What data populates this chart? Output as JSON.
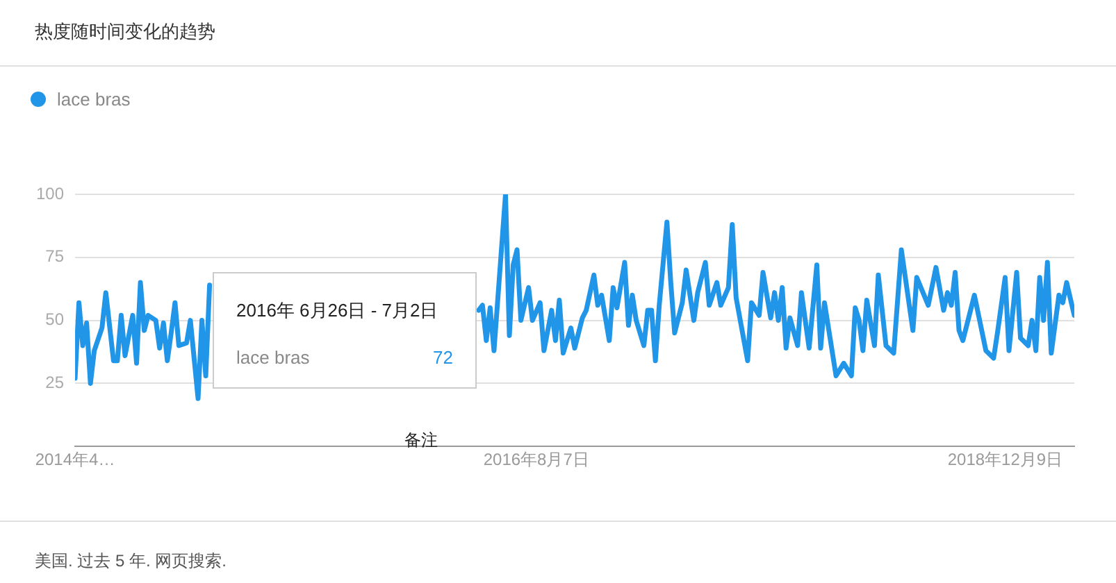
{
  "chart_data": {
    "type": "line",
    "title": "热度随时间变化的趋势",
    "legend": "top left",
    "grid": "y",
    "marker": "none",
    "line_style": "solid",
    "xlim": [
      "2014-04-20",
      "2019-04-14"
    ],
    "xticks": [
      {
        "value": "2014-04-20",
        "label": "2014年4…"
      },
      {
        "value": "2016-08-07",
        "label": "2016年8月7日"
      },
      {
        "value": "2018-12-09",
        "label": "2018年12月9日"
      }
    ],
    "ylim": [
      0,
      100
    ],
    "yticks": [
      25,
      50,
      75,
      100
    ],
    "annotations": [
      "2016年 6月26日 - 7月2日",
      "72",
      "备注",
      "美国. 过去 5 年. 网页搜索."
    ],
    "series": [
      {
        "name": "lace bras",
        "color": "#2196e8",
        "x": [
          "2014-04-20",
          "2014-04-27",
          "2014-05-04",
          "2014-05-11",
          "2014-05-18",
          "2014-05-25",
          "2014-06-08",
          "2014-06-15",
          "2014-06-29",
          "2014-07-06",
          "2014-07-13",
          "2014-07-20",
          "2014-08-03",
          "2014-08-10",
          "2014-08-17",
          "2014-08-24",
          "2014-08-31",
          "2014-09-14",
          "2014-09-21",
          "2014-09-28",
          "2014-10-05",
          "2014-10-12",
          "2014-10-19",
          "2014-10-26",
          "2014-11-09",
          "2014-11-16",
          "2014-11-30",
          "2014-12-07",
          "2014-12-14",
          "2014-12-21",
          "2015-01-11",
          "2015-02-01",
          "2015-02-22",
          "2015-03-15",
          "2015-04-05",
          "2015-04-26",
          "2015-05-17",
          "2015-06-07",
          "2015-06-21",
          "2015-07-05",
          "2015-07-26",
          "2015-08-16",
          "2015-09-06",
          "2015-09-27",
          "2015-10-18",
          "2015-11-08",
          "2015-11-22",
          "2015-12-13",
          "2016-01-03",
          "2016-01-24",
          "2016-02-14",
          "2016-03-06",
          "2016-03-27",
          "2016-04-10",
          "2016-04-24",
          "2016-05-01",
          "2016-05-08",
          "2016-05-15",
          "2016-05-22",
          "2016-06-12",
          "2016-06-19",
          "2016-06-26",
          "2016-07-03",
          "2016-07-10",
          "2016-07-24",
          "2016-07-31",
          "2016-08-14",
          "2016-08-21",
          "2016-09-04",
          "2016-09-11",
          "2016-09-18",
          "2016-09-25",
          "2016-10-09",
          "2016-10-16",
          "2016-10-30",
          "2016-11-06",
          "2016-11-20",
          "2016-11-27",
          "2016-12-04",
          "2016-12-18",
          "2016-12-25",
          "2017-01-01",
          "2017-01-15",
          "2017-01-22",
          "2017-01-29",
          "2017-02-05",
          "2017-02-19",
          "2017-02-26",
          "2017-03-05",
          "2017-03-12",
          "2017-03-19",
          "2017-04-02",
          "2017-04-09",
          "2017-04-16",
          "2017-04-30",
          "2017-05-07",
          "2017-05-21",
          "2017-05-28",
          "2017-06-11",
          "2017-06-18",
          "2017-07-02",
          "2017-07-09",
          "2017-07-23",
          "2017-07-30",
          "2017-08-06",
          "2017-08-27",
          "2017-09-03",
          "2017-09-17",
          "2017-09-24",
          "2017-10-08",
          "2017-10-15",
          "2017-10-22",
          "2017-10-29",
          "2017-11-05",
          "2017-11-12",
          "2017-11-26",
          "2017-12-03",
          "2017-12-17",
          "2017-12-31",
          "2018-01-07",
          "2018-01-14",
          "2018-02-04",
          "2018-02-18",
          "2018-03-04",
          "2018-03-11",
          "2018-03-18",
          "2018-03-25",
          "2018-04-01",
          "2018-04-15",
          "2018-04-22",
          "2018-05-06",
          "2018-05-20",
          "2018-06-03",
          "2018-06-24",
          "2018-07-01",
          "2018-07-22",
          "2018-08-05",
          "2018-08-19",
          "2018-08-26",
          "2018-09-02",
          "2018-09-09",
          "2018-09-16",
          "2018-09-23",
          "2018-10-07",
          "2018-10-14",
          "2018-11-04",
          "2018-11-18",
          "2018-11-25",
          "2018-12-09",
          "2018-12-16",
          "2018-12-30",
          "2019-01-06",
          "2019-01-20",
          "2019-01-27",
          "2019-02-03",
          "2019-02-10",
          "2019-02-17",
          "2019-02-24",
          "2019-03-03",
          "2019-03-17",
          "2019-03-24",
          "2019-03-31",
          "2019-04-14"
        ],
        "values": [
          27,
          57,
          40,
          49,
          25,
          38,
          47,
          61,
          34,
          34,
          52,
          36,
          52,
          33,
          65,
          46,
          52,
          50,
          39,
          49,
          34,
          45,
          57,
          40,
          41,
          50,
          19,
          50,
          28,
          64,
          null,
          null,
          null,
          null,
          null,
          null,
          null,
          null,
          null,
          null,
          null,
          null,
          null,
          null,
          null,
          null,
          null,
          null,
          null,
          null,
          null,
          null,
          null,
          null,
          54,
          56,
          42,
          55,
          38,
          100,
          44,
          72,
          78,
          50,
          63,
          50,
          57,
          38,
          54,
          42,
          58,
          37,
          47,
          39,
          51,
          54,
          68,
          56,
          60,
          42,
          63,
          55,
          73,
          48,
          60,
          50,
          40,
          54,
          54,
          34,
          56,
          89,
          65,
          45,
          57,
          70,
          50,
          61,
          73,
          56,
          65,
          56,
          63,
          88,
          59,
          34,
          57,
          52,
          69,
          51,
          61,
          50,
          63,
          39,
          51,
          40,
          61,
          39,
          72,
          39,
          57,
          28,
          33,
          28,
          55,
          50,
          38,
          58,
          40,
          68,
          40,
          37,
          78,
          46,
          67,
          56,
          71,
          54,
          61,
          56,
          69,
          46,
          42,
          54,
          60,
          38,
          35,
          45,
          67,
          38,
          69,
          43,
          40,
          50,
          38,
          67,
          50,
          73,
          37,
          60,
          57,
          65,
          52
        ]
      }
    ]
  }
}
